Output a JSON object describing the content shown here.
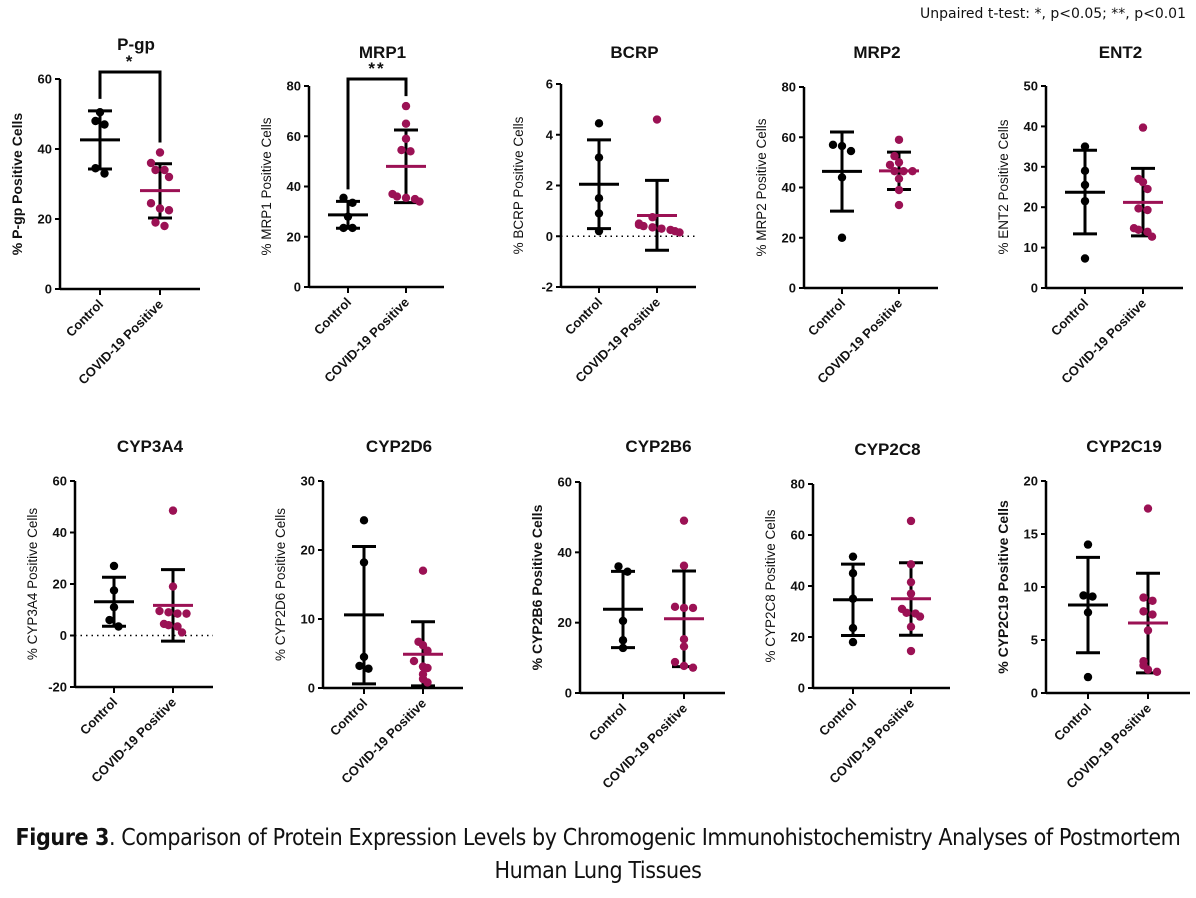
{
  "note": "Unpaired t-test: *, p<0.05; **, p<0.01",
  "caption": {
    "label": "Figure 3",
    "text": ". Comparison of Protein Expression Levels by Chromogenic Immunohistochemistry Analyses of Postmortem Human Lung Tissues"
  },
  "colors": {
    "control": "#000000",
    "covid": "#9b1154"
  },
  "chart_data": [
    {
      "type": "scatter",
      "title": "P-gp",
      "ylabel": "% P-gp Positive Cells",
      "ylim": [
        0,
        60
      ],
      "yticks": [
        0,
        20,
        40,
        60
      ],
      "categories": [
        "Control",
        "COVID-19 Positive"
      ],
      "significance": "*",
      "zero_line": false,
      "series": [
        {
          "name": "Control",
          "values": [
            50.5,
            48,
            47,
            34.5,
            33
          ],
          "mean": 42.6,
          "sd_low": 34.3,
          "sd_high": 50.9
        },
        {
          "name": "COVID-19 Positive",
          "values": [
            39,
            36,
            34,
            34,
            32,
            24.5,
            23,
            22.5,
            19,
            18
          ],
          "mean": 28.1,
          "sd_low": 20.3,
          "sd_high": 35.8
        }
      ]
    },
    {
      "type": "scatter",
      "title": "MRP1",
      "ylabel": "% MRP1 Positive Cells",
      "ylim": [
        0,
        80
      ],
      "yticks": [
        0,
        20,
        40,
        60,
        80
      ],
      "categories": [
        "Control",
        "COVID-19 Positive"
      ],
      "significance": "**",
      "zero_line": false,
      "series": [
        {
          "name": "Control",
          "values": [
            35.5,
            33.5,
            28,
            23.5,
            23.5
          ],
          "mean": 28.7,
          "sd_low": 23.4,
          "sd_high": 34.1
        },
        {
          "name": "COVID-19 Positive",
          "values": [
            72,
            65,
            59,
            54.5,
            54,
            37,
            36,
            35.5,
            35,
            34
          ],
          "mean": 48,
          "sd_low": 33.6,
          "sd_high": 62.5
        }
      ]
    },
    {
      "type": "scatter",
      "title": "BCRP",
      "ylabel": "% BCRP Positive Cells",
      "ylim": [
        -2,
        6
      ],
      "yticks": [
        -2,
        0,
        2,
        4,
        6
      ],
      "categories": [
        "Control",
        "COVID-19 Positive"
      ],
      "significance": "",
      "zero_line": true,
      "series": [
        {
          "name": "Control",
          "values": [
            4.45,
            3.1,
            1.5,
            0.9,
            0.2
          ],
          "mean": 2.05,
          "sd_low": 0.3,
          "sd_high": 3.8
        },
        {
          "name": "COVID-19 Positive",
          "values": [
            4.6,
            0.75,
            0.5,
            0.45,
            0.4,
            0.35,
            0.3,
            0.25,
            0.2,
            0.15
          ],
          "mean": 0.82,
          "sd_low": -0.55,
          "sd_high": 2.2
        }
      ]
    },
    {
      "type": "scatter",
      "title": "MRP2",
      "ylabel": "% MRP2 Positive Cells",
      "ylim": [
        0,
        80
      ],
      "yticks": [
        0,
        20,
        40,
        60,
        80
      ],
      "categories": [
        "Control",
        "COVID-19 Positive"
      ],
      "significance": "",
      "zero_line": false,
      "series": [
        {
          "name": "Control",
          "values": [
            57,
            56.5,
            54.5,
            44,
            20
          ],
          "mean": 46.4,
          "sd_low": 30.6,
          "sd_high": 62.1
        },
        {
          "name": "COVID-19 Positive",
          "values": [
            59,
            52.5,
            50,
            49,
            46.5,
            46.5,
            46.5,
            43.5,
            39,
            33
          ],
          "mean": 46.6,
          "sd_low": 39.2,
          "sd_high": 54.1
        }
      ]
    },
    {
      "type": "scatter",
      "title": "ENT2",
      "ylabel": "% ENT2 Positive Cells",
      "ylim": [
        0,
        50
      ],
      "yticks": [
        0,
        10,
        20,
        30,
        40,
        50
      ],
      "categories": [
        "Control",
        "COVID-19 Positive"
      ],
      "significance": "",
      "zero_line": false,
      "series": [
        {
          "name": "Control",
          "values": [
            35,
            29,
            25.5,
            21.5,
            7.3
          ],
          "mean": 23.7,
          "sd_low": 13.4,
          "sd_high": 34.1
        },
        {
          "name": "COVID-19 Positive",
          "values": [
            39.7,
            27,
            26.2,
            24.5,
            19.7,
            19.3,
            14.8,
            14.4,
            13.9,
            12.7
          ],
          "mean": 21.2,
          "sd_low": 12.9,
          "sd_high": 29.6
        }
      ]
    },
    {
      "type": "scatter",
      "title": "CYP3A4",
      "ylabel": "% CYP3A4 Positive Cells",
      "ylim": [
        -20,
        60
      ],
      "yticks": [
        -20,
        0,
        20,
        40,
        60
      ],
      "categories": [
        "Control",
        "COVID-19 Positive"
      ],
      "significance": "",
      "zero_line": true,
      "series": [
        {
          "name": "Control",
          "values": [
            27,
            17.5,
            11,
            6,
            3.5
          ],
          "mean": 13.1,
          "sd_low": 3.6,
          "sd_high": 22.6
        },
        {
          "name": "COVID-19 Positive",
          "values": [
            48.5,
            19,
            9.5,
            9,
            8.5,
            8.5,
            4.5,
            4,
            3.5,
            1.2
          ],
          "mean": 11.7,
          "sd_low": -2.2,
          "sd_high": 25.6
        }
      ]
    },
    {
      "type": "scatter",
      "title": "CYP2D6",
      "ylabel": "% CYP2D6 Positive Cells",
      "ylim": [
        0,
        30
      ],
      "yticks": [
        0,
        10,
        20,
        30
      ],
      "categories": [
        "Control",
        "COVID-19 Positive"
      ],
      "significance": "",
      "zero_line": false,
      "series": [
        {
          "name": "Control",
          "values": [
            24.3,
            18.2,
            4.5,
            3.2,
            2.8
          ],
          "mean": 10.6,
          "sd_low": 0.6,
          "sd_high": 20.5
        },
        {
          "name": "COVID-19 Positive",
          "values": [
            17,
            6.7,
            6.2,
            5.4,
            3.9,
            3.1,
            2.9,
            2.0,
            1.3,
            0.8
          ],
          "mean": 4.9,
          "sd_low": 0.3,
          "sd_high": 9.6
        }
      ]
    },
    {
      "type": "scatter",
      "title": "CYP2B6",
      "ylabel": "% CYP2B6 Positive Cells",
      "ylim": [
        0,
        60
      ],
      "yticks": [
        0,
        20,
        40,
        60
      ],
      "categories": [
        "Control",
        "COVID-19 Positive"
      ],
      "significance": "",
      "zero_line": false,
      "series": [
        {
          "name": "Control",
          "values": [
            36,
            34.5,
            20.5,
            15,
            12.8
          ],
          "mean": 23.8,
          "sd_low": 12.9,
          "sd_high": 34.6
        },
        {
          "name": "COVID-19 Positive",
          "values": [
            49,
            36.2,
            24.5,
            24.2,
            24.2,
            15.3,
            13.2,
            8.8,
            7.7,
            7.2
          ],
          "mean": 21.1,
          "sd_low": 7.5,
          "sd_high": 34.7
        }
      ]
    },
    {
      "type": "scatter",
      "title": "CYP2C8",
      "ylabel": "% CYP2C8 Positive Cells",
      "ylim": [
        0,
        80
      ],
      "yticks": [
        0,
        20,
        40,
        60,
        80
      ],
      "categories": [
        "Control",
        "COVID-19 Positive"
      ],
      "significance": "",
      "zero_line": false,
      "series": [
        {
          "name": "Control",
          "values": [
            51.5,
            45,
            35,
            23.5,
            18
          ],
          "mean": 34.6,
          "sd_low": 20.6,
          "sd_high": 48.6
        },
        {
          "name": "COVID-19 Positive",
          "values": [
            65.5,
            48.5,
            41.5,
            37,
            31,
            29.5,
            29.2,
            28,
            24,
            14.5
          ],
          "mean": 35,
          "sd_low": 20.7,
          "sd_high": 49.1
        }
      ]
    },
    {
      "type": "scatter",
      "title": "CYP2C19",
      "ylabel": "% CYP2C19 Positive Cells",
      "ylim": [
        0,
        20
      ],
      "yticks": [
        0,
        5,
        10,
        15,
        20
      ],
      "categories": [
        "Control",
        "COVID-19 Positive"
      ],
      "significance": "",
      "zero_line": false,
      "series": [
        {
          "name": "Control",
          "values": [
            14,
            9.2,
            9.1,
            7.6,
            1.5
          ],
          "mean": 8.3,
          "sd_low": 3.8,
          "sd_high": 12.8
        },
        {
          "name": "COVID-19 Positive",
          "values": [
            17.4,
            9.0,
            8.7,
            7.7,
            7.4,
            5.9,
            3.0,
            2.6,
            2.2,
            2.0
          ],
          "mean": 6.6,
          "sd_low": 1.9,
          "sd_high": 11.3
        }
      ]
    }
  ]
}
